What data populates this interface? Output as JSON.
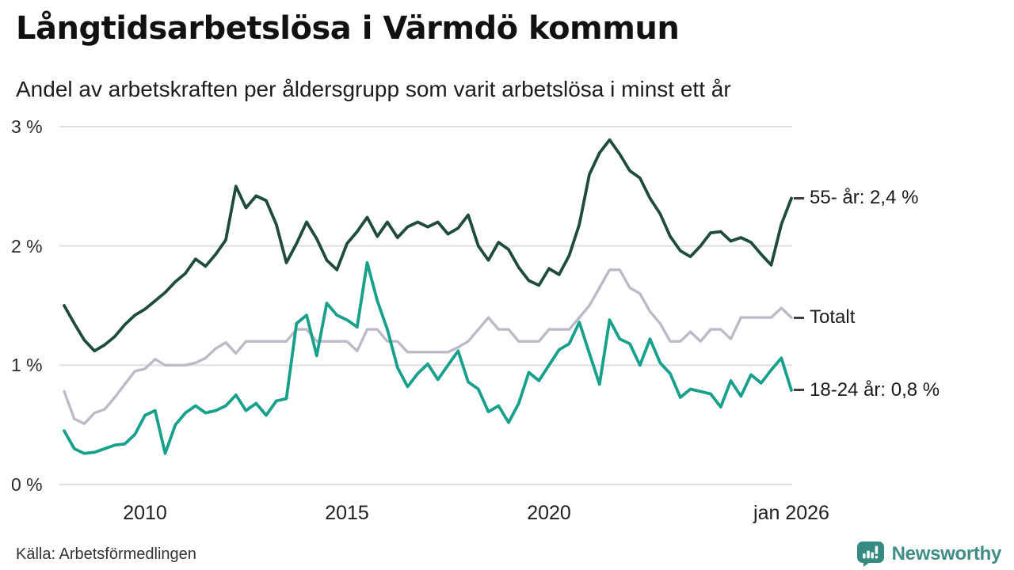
{
  "header": {
    "title": "Långtidsarbetslösa i Värmdö kommun",
    "subtitle": "Andel av arbetskraften per åldersgrupp som varit arbetslösa i minst ett år"
  },
  "footer": {
    "source": "Källa: Arbetsförmedlingen",
    "brand": "Newsworthy",
    "brand_color": "#3f8d85"
  },
  "chart_data": {
    "type": "line",
    "title": "Långtidsarbetslösa i Värmdö kommun",
    "subtitle": "Andel av arbetskraften per åldersgrupp som varit arbetslösa i minst ett år",
    "unit": "%",
    "grid": "horizontal",
    "grid_color": "#dfdfe3",
    "xlim": [
      2008,
      2026
    ],
    "ylim": [
      0,
      3
    ],
    "yticks": [
      {
        "label": "3 %",
        "value": 3
      },
      {
        "label": "2 %",
        "value": 2
      },
      {
        "label": "1 %",
        "value": 1
      },
      {
        "label": "0 %",
        "value": 0
      }
    ],
    "xticks": [
      {
        "label": "2010",
        "year": 2010
      },
      {
        "label": "2015",
        "year": 2015
      },
      {
        "label": "2020",
        "year": 2020
      },
      {
        "label": "jan 2026",
        "year": 2026
      }
    ],
    "x": [
      2008.0,
      2008.25,
      2008.5,
      2008.75,
      2009.0,
      2009.25,
      2009.5,
      2009.75,
      2010.0,
      2010.25,
      2010.5,
      2010.75,
      2011.0,
      2011.25,
      2011.5,
      2011.75,
      2012.0,
      2012.25,
      2012.5,
      2012.75,
      2013.0,
      2013.25,
      2013.5,
      2013.75,
      2014.0,
      2014.25,
      2014.5,
      2014.75,
      2015.0,
      2015.25,
      2015.5,
      2015.75,
      2016.0,
      2016.25,
      2016.5,
      2016.75,
      2017.0,
      2017.25,
      2017.5,
      2017.75,
      2018.0,
      2018.25,
      2018.5,
      2018.75,
      2019.0,
      2019.25,
      2019.5,
      2019.75,
      2020.0,
      2020.25,
      2020.5,
      2020.75,
      2021.0,
      2021.25,
      2021.5,
      2021.75,
      2022.0,
      2022.25,
      2022.5,
      2022.75,
      2023.0,
      2023.25,
      2023.5,
      2023.75,
      2024.0,
      2024.25,
      2024.5,
      2024.75,
      2025.0,
      2025.25,
      2025.5,
      2025.75,
      2026.0
    ],
    "series": [
      {
        "id": "55-ar",
        "name": "55- år",
        "end_label": "55- år: 2,4 %",
        "end_value": "2,4 %",
        "color": "#1f4b3f",
        "values": [
          1.5,
          1.35,
          1.21,
          1.12,
          1.17,
          1.24,
          1.34,
          1.42,
          1.47,
          1.54,
          1.61,
          1.7,
          1.77,
          1.89,
          1.83,
          1.93,
          2.05,
          2.5,
          2.32,
          2.42,
          2.38,
          2.18,
          1.86,
          2.02,
          2.2,
          2.06,
          1.88,
          1.8,
          2.02,
          2.12,
          2.24,
          2.08,
          2.2,
          2.07,
          2.16,
          2.2,
          2.16,
          2.2,
          2.1,
          2.15,
          2.26,
          2.0,
          1.88,
          2.03,
          1.97,
          1.82,
          1.71,
          1.67,
          1.81,
          1.76,
          1.92,
          2.18,
          2.6,
          2.78,
          2.89,
          2.77,
          2.63,
          2.57,
          2.4,
          2.27,
          2.08,
          1.96,
          1.91,
          2.0,
          2.11,
          2.12,
          2.04,
          2.07,
          2.03,
          1.93,
          1.84,
          2.18,
          2.4
        ]
      },
      {
        "id": "totalt",
        "name": "Totalt",
        "end_label": "Totalt",
        "end_value": "1,4 %",
        "color": "#bcbac8",
        "values": [
          0.78,
          0.55,
          0.51,
          0.6,
          0.63,
          0.73,
          0.84,
          0.95,
          0.97,
          1.05,
          1.0,
          1.0,
          1.0,
          1.02,
          1.06,
          1.14,
          1.19,
          1.1,
          1.2,
          1.2,
          1.2,
          1.2,
          1.2,
          1.3,
          1.3,
          1.2,
          1.2,
          1.2,
          1.2,
          1.12,
          1.3,
          1.3,
          1.2,
          1.2,
          1.11,
          1.11,
          1.11,
          1.11,
          1.11,
          1.15,
          1.2,
          1.3,
          1.4,
          1.3,
          1.3,
          1.2,
          1.2,
          1.2,
          1.3,
          1.3,
          1.3,
          1.4,
          1.5,
          1.65,
          1.8,
          1.8,
          1.65,
          1.6,
          1.45,
          1.35,
          1.2,
          1.2,
          1.28,
          1.2,
          1.3,
          1.3,
          1.22,
          1.4,
          1.4,
          1.4,
          1.4,
          1.48,
          1.4
        ]
      },
      {
        "id": "18-24-ar",
        "name": "18-24 år",
        "end_label": "18-24 år: 0,8 %",
        "end_value": "0,8 %",
        "color": "#17a08b",
        "values": [
          0.45,
          0.3,
          0.26,
          0.27,
          0.3,
          0.33,
          0.34,
          0.42,
          0.58,
          0.62,
          0.26,
          0.5,
          0.6,
          0.66,
          0.6,
          0.62,
          0.66,
          0.75,
          0.62,
          0.68,
          0.58,
          0.7,
          0.72,
          1.35,
          1.42,
          1.08,
          1.52,
          1.42,
          1.38,
          1.32,
          1.86,
          1.54,
          1.3,
          0.98,
          0.82,
          0.93,
          1.01,
          0.88,
          1.0,
          1.12,
          0.86,
          0.8,
          0.61,
          0.66,
          0.52,
          0.68,
          0.94,
          0.87,
          1.0,
          1.13,
          1.18,
          1.36,
          1.1,
          0.84,
          1.38,
          1.22,
          1.18,
          1.0,
          1.22,
          1.02,
          0.93,
          0.73,
          0.8,
          0.78,
          0.76,
          0.65,
          0.87,
          0.74,
          0.92,
          0.85,
          0.96,
          1.06,
          0.79
        ]
      }
    ]
  }
}
